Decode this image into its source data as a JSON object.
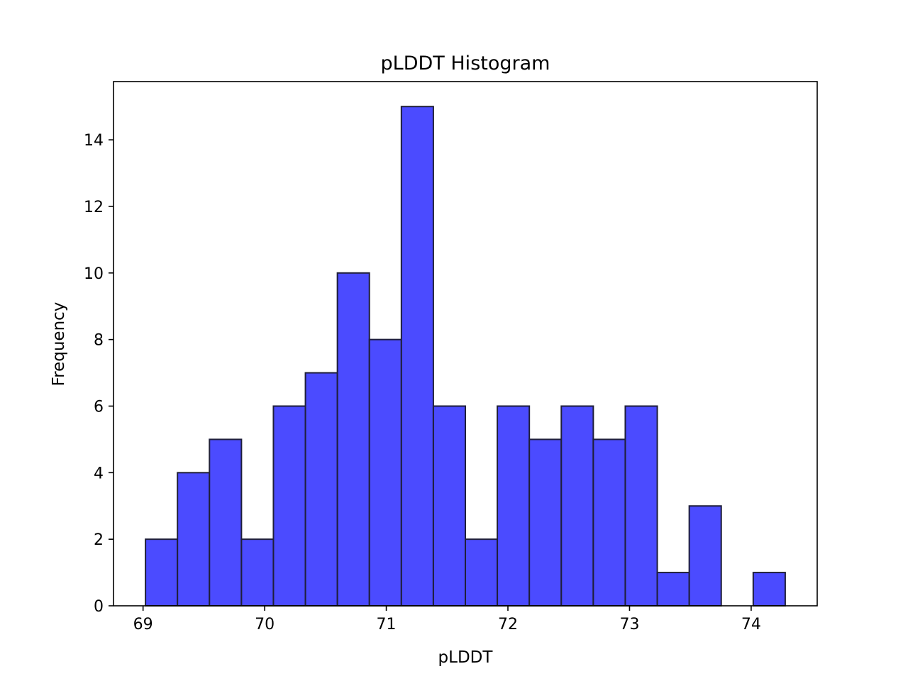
{
  "chart_data": {
    "type": "bar",
    "title": "pLDDT Histogram",
    "xlabel": "pLDDT",
    "ylabel": "Frequency",
    "bin_edges": [
      69.02,
      69.283,
      69.546,
      69.809,
      70.072,
      70.335,
      70.598,
      70.861,
      71.124,
      71.387,
      71.65,
      71.913,
      72.176,
      72.439,
      72.702,
      72.965,
      73.228,
      73.491,
      73.754,
      74.017,
      74.28
    ],
    "values": [
      2,
      4,
      5,
      2,
      6,
      7,
      10,
      8,
      15,
      6,
      2,
      6,
      5,
      6,
      5,
      6,
      1,
      3,
      0,
      1
    ],
    "xlim": [
      68.757,
      74.543
    ],
    "ylim": [
      0,
      15.75
    ],
    "xticks": [
      69,
      70,
      71,
      72,
      73,
      74
    ],
    "yticks": [
      0,
      2,
      4,
      6,
      8,
      10,
      12,
      14
    ],
    "bar_color": "#4b4bff",
    "edge_color": "#1f1f3a",
    "grid": false
  }
}
